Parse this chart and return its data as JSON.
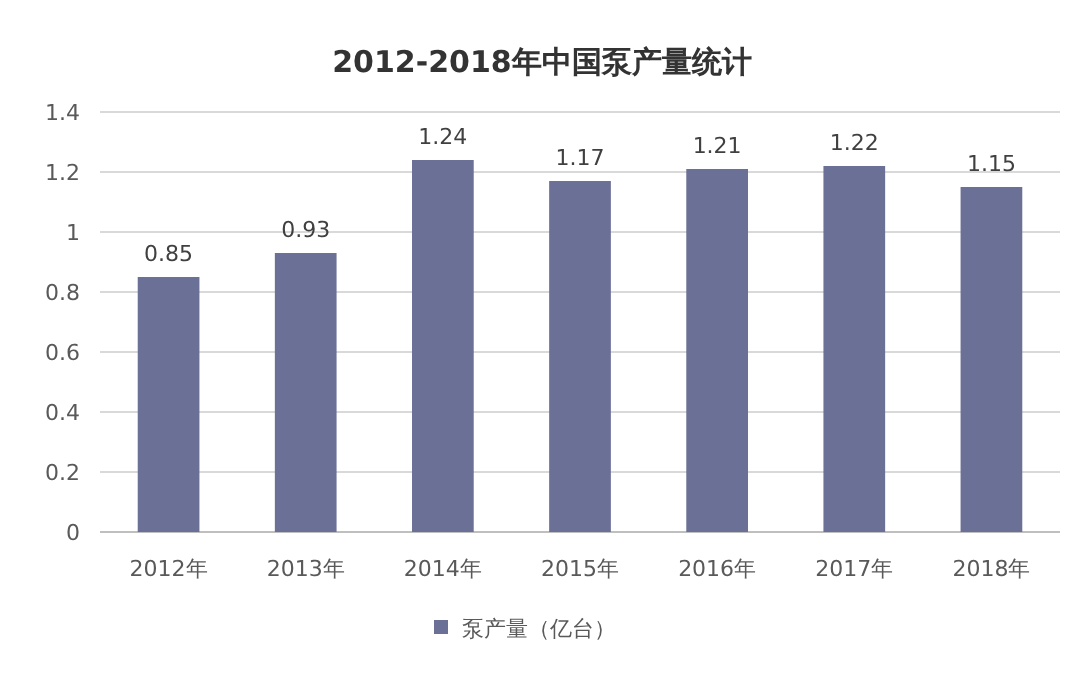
{
  "chart_data": {
    "type": "bar",
    "title": "2012-2018年中国泵产量统计",
    "categories": [
      "2012年",
      "2013年",
      "2014年",
      "2015年",
      "2016年",
      "2017年",
      "2018年"
    ],
    "series": [
      {
        "name": "泵产量（亿台）",
        "color": "#6b7096",
        "values": [
          0.85,
          0.93,
          1.24,
          1.17,
          1.21,
          1.22,
          1.15
        ]
      }
    ],
    "ylim": [
      0,
      1.4
    ],
    "yticks": [
      0,
      0.2,
      0.4,
      0.6,
      0.8,
      1,
      1.2,
      1.4
    ],
    "grid": "y",
    "legend": "bottom",
    "data_labels": true
  }
}
